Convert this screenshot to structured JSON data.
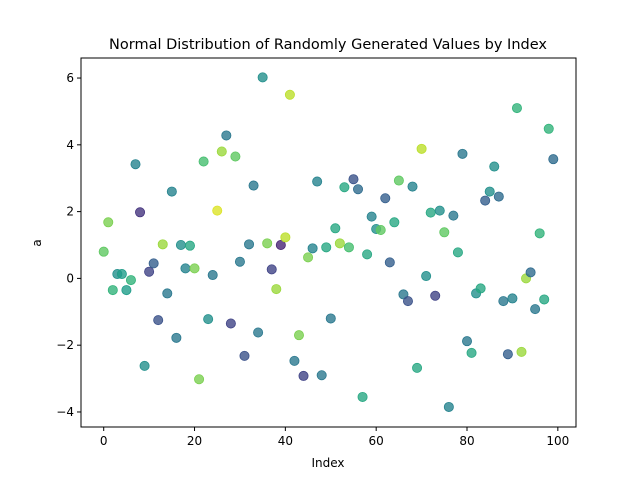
{
  "chart_data": {
    "type": "scatter",
    "title": "Normal Distribution of Randomly Generated Values by Index",
    "xlabel": "Index",
    "ylabel": "a",
    "xlim": [
      -5,
      104
    ],
    "ylim": [
      -4.45,
      6.6
    ],
    "xticks": [
      0,
      20,
      40,
      60,
      80,
      100
    ],
    "yticks": [
      -4,
      -2,
      0,
      2,
      4,
      6
    ],
    "xtick_labels": [
      "0",
      "20",
      "40",
      "60",
      "80",
      "100"
    ],
    "ytick_labels": [
      "−4",
      "−2",
      "0",
      "2",
      "4",
      "6"
    ],
    "grid": false,
    "point_colormap": "viridis",
    "point_alpha": 0.8,
    "x": [
      0,
      1,
      2,
      3,
      4,
      5,
      6,
      7,
      8,
      9,
      10,
      11,
      12,
      13,
      14,
      15,
      16,
      17,
      18,
      19,
      20,
      21,
      22,
      23,
      24,
      25,
      26,
      27,
      28,
      29,
      30,
      31,
      32,
      33,
      34,
      35,
      36,
      37,
      38,
      39,
      40,
      41,
      42,
      43,
      44,
      45,
      46,
      47,
      48,
      49,
      50,
      51,
      52,
      53,
      54,
      55,
      56,
      57,
      58,
      59,
      60,
      61,
      62,
      63,
      64,
      65,
      66,
      67,
      68,
      69,
      70,
      71,
      72,
      73,
      74,
      75,
      76,
      77,
      78,
      79,
      80,
      81,
      82,
      83,
      84,
      85,
      86,
      87,
      88,
      89,
      90,
      91,
      92,
      93,
      94,
      95,
      96,
      97,
      98,
      99
    ],
    "y": [
      0.8,
      1.68,
      -0.35,
      0.13,
      0.13,
      -0.35,
      -0.05,
      3.42,
      1.98,
      -2.62,
      0.2,
      0.45,
      -1.25,
      1.02,
      -0.45,
      2.6,
      -1.78,
      1.0,
      0.3,
      0.98,
      0.3,
      -3.02,
      3.5,
      -1.22,
      0.1,
      2.03,
      3.8,
      4.28,
      -1.35,
      3.65,
      0.5,
      -2.32,
      1.02,
      2.78,
      -1.62,
      6.02,
      1.05,
      0.27,
      -0.32,
      1.0,
      1.23,
      5.5,
      -2.47,
      -1.7,
      -2.92,
      0.63,
      0.9,
      2.9,
      -2.9,
      0.93,
      -1.2,
      1.5,
      1.05,
      2.73,
      0.93,
      2.97,
      2.67,
      -3.55,
      0.72,
      1.85,
      1.48,
      1.45,
      2.4,
      0.48,
      1.68,
      2.93,
      -0.48,
      -0.68,
      2.75,
      -2.68,
      3.88,
      0.07,
      1.97,
      -0.52,
      2.03,
      1.38,
      -3.85,
      1.88,
      0.78,
      3.73,
      -1.88,
      -2.23,
      -0.45,
      -0.3,
      2.33,
      2.6,
      3.35,
      2.45,
      -0.68,
      -2.27,
      -0.6,
      5.1,
      -2.2,
      0.0,
      0.18,
      -0.92,
      1.35,
      -0.63,
      4.48,
      3.57
    ],
    "c": [
      0.75,
      0.8,
      0.65,
      0.5,
      0.55,
      0.55,
      0.65,
      0.45,
      0.15,
      0.5,
      0.2,
      0.3,
      0.25,
      0.85,
      0.4,
      0.45,
      0.4,
      0.5,
      0.45,
      0.6,
      0.8,
      0.8,
      0.7,
      0.5,
      0.4,
      0.95,
      0.85,
      0.4,
      0.2,
      0.75,
      0.4,
      0.25,
      0.4,
      0.4,
      0.4,
      0.5,
      0.8,
      0.2,
      0.85,
      0.1,
      0.9,
      0.9,
      0.4,
      0.8,
      0.2,
      0.8,
      0.45,
      0.45,
      0.4,
      0.6,
      0.4,
      0.6,
      0.85,
      0.6,
      0.7,
      0.25,
      0.35,
      0.6,
      0.6,
      0.45,
      0.5,
      0.75,
      0.3,
      0.3,
      0.6,
      0.75,
      0.4,
      0.25,
      0.45,
      0.6,
      0.9,
      0.5,
      0.6,
      0.2,
      0.5,
      0.75,
      0.45,
      0.4,
      0.6,
      0.4,
      0.4,
      0.6,
      0.5,
      0.6,
      0.3,
      0.5,
      0.5,
      0.35,
      0.4,
      0.3,
      0.45,
      0.65,
      0.85,
      0.85,
      0.35,
      0.4,
      0.65,
      0.6,
      0.65,
      0.35
    ]
  }
}
